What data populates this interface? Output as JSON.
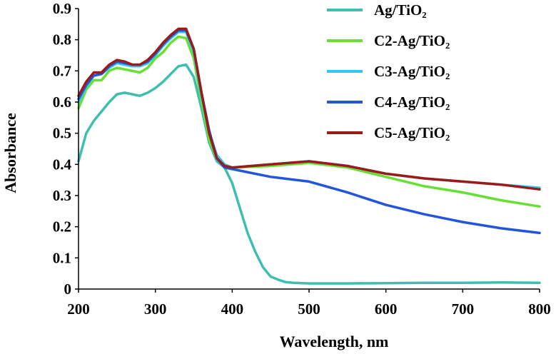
{
  "chart_data": {
    "type": "line",
    "title": "",
    "xlabel": "Wavelength, nm",
    "ylabel": "Absorbance",
    "xlim": [
      200,
      800
    ],
    "ylim": [
      0,
      0.9
    ],
    "xticks": [
      "200",
      "300",
      "400",
      "500",
      "600",
      "700",
      "800"
    ],
    "yticks": [
      "0",
      "0.1",
      "0.2",
      "0.3",
      "0.4",
      "0.5",
      "0.6",
      "0.7",
      "0.8",
      "0.9"
    ],
    "grid": false,
    "legend_position": "top-right",
    "series": [
      {
        "name": "Ag/TiO₂",
        "color": "#3dbfb0",
        "x": [
          200,
          210,
          220,
          230,
          240,
          250,
          260,
          270,
          280,
          290,
          300,
          310,
          320,
          330,
          340,
          350,
          360,
          370,
          380,
          390,
          400,
          410,
          420,
          430,
          440,
          450,
          460,
          470,
          480,
          500,
          550,
          600,
          650,
          700,
          750,
          800
        ],
        "y": [
          0.41,
          0.5,
          0.54,
          0.57,
          0.6,
          0.625,
          0.63,
          0.625,
          0.62,
          0.63,
          0.645,
          0.665,
          0.69,
          0.715,
          0.72,
          0.68,
          0.58,
          0.47,
          0.41,
          0.39,
          0.34,
          0.26,
          0.18,
          0.12,
          0.07,
          0.04,
          0.03,
          0.022,
          0.02,
          0.018,
          0.018,
          0.019,
          0.02,
          0.02,
          0.021,
          0.02
        ]
      },
      {
        "name": "C2-Ag/TiO₂",
        "color": "#66e033",
        "x": [
          200,
          210,
          220,
          230,
          240,
          250,
          260,
          270,
          280,
          290,
          300,
          310,
          320,
          330,
          340,
          350,
          360,
          370,
          380,
          390,
          400,
          450,
          500,
          550,
          600,
          650,
          700,
          750,
          800
        ],
        "y": [
          0.58,
          0.64,
          0.67,
          0.67,
          0.7,
          0.71,
          0.705,
          0.7,
          0.695,
          0.71,
          0.74,
          0.76,
          0.79,
          0.81,
          0.805,
          0.74,
          0.6,
          0.48,
          0.42,
          0.395,
          0.39,
          0.395,
          0.405,
          0.39,
          0.36,
          0.33,
          0.31,
          0.285,
          0.265
        ]
      },
      {
        "name": "C3-Ag/TiO₂",
        "color": "#33c8ee",
        "x": [
          200,
          210,
          220,
          230,
          240,
          250,
          260,
          270,
          280,
          290,
          300,
          310,
          320,
          330,
          340,
          350,
          360,
          370,
          380,
          390,
          400,
          450,
          500,
          550,
          600,
          650,
          700,
          750,
          800
        ],
        "y": [
          0.6,
          0.65,
          0.685,
          0.69,
          0.71,
          0.725,
          0.72,
          0.715,
          0.715,
          0.725,
          0.75,
          0.78,
          0.805,
          0.825,
          0.825,
          0.76,
          0.62,
          0.5,
          0.43,
          0.4,
          0.39,
          0.4,
          0.41,
          0.395,
          0.37,
          0.355,
          0.345,
          0.335,
          0.325
        ]
      },
      {
        "name": "C4-Ag/TiO₂",
        "color": "#2255dd",
        "x": [
          200,
          210,
          220,
          230,
          240,
          250,
          260,
          270,
          280,
          290,
          300,
          310,
          320,
          330,
          340,
          350,
          360,
          370,
          380,
          390,
          400,
          450,
          500,
          550,
          600,
          650,
          700,
          750,
          800
        ],
        "y": [
          0.61,
          0.655,
          0.685,
          0.69,
          0.715,
          0.73,
          0.725,
          0.72,
          0.72,
          0.73,
          0.755,
          0.785,
          0.81,
          0.83,
          0.83,
          0.77,
          0.63,
          0.51,
          0.42,
          0.39,
          0.385,
          0.36,
          0.345,
          0.31,
          0.27,
          0.24,
          0.215,
          0.195,
          0.18
        ]
      },
      {
        "name": "C5-Ag/TiO₂",
        "color": "#9b1b1b",
        "x": [
          200,
          210,
          220,
          230,
          240,
          250,
          260,
          270,
          280,
          290,
          300,
          310,
          320,
          330,
          340,
          350,
          360,
          370,
          380,
          390,
          400,
          450,
          500,
          550,
          600,
          650,
          700,
          750,
          800
        ],
        "y": [
          0.62,
          0.665,
          0.695,
          0.695,
          0.72,
          0.735,
          0.73,
          0.72,
          0.72,
          0.735,
          0.76,
          0.79,
          0.815,
          0.835,
          0.835,
          0.77,
          0.63,
          0.5,
          0.42,
          0.395,
          0.39,
          0.4,
          0.41,
          0.395,
          0.37,
          0.355,
          0.345,
          0.335,
          0.32
        ]
      }
    ]
  }
}
